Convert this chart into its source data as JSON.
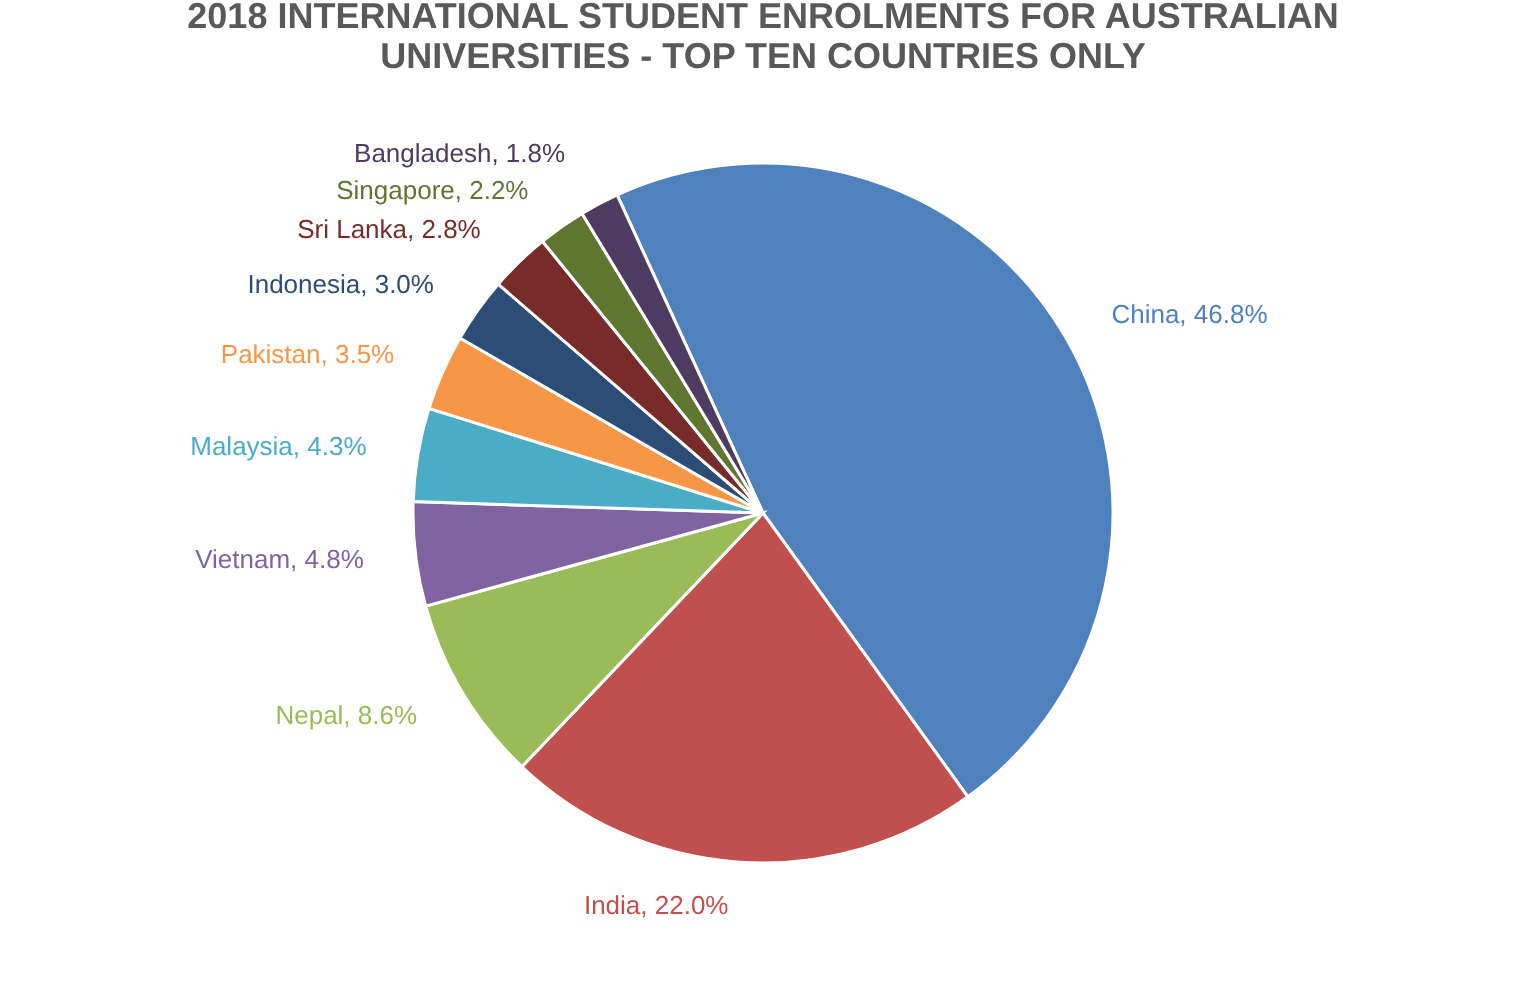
{
  "chart_data": {
    "type": "pie",
    "title": "2018 INTERNATIONAL STUDENT ENROLMENTS FOR AUSTRALIAN UNIVERSITIES - TOP TEN COUNTRIES ONLY",
    "categories": [
      "China",
      "India",
      "Nepal",
      "Vietnam",
      "Malaysia",
      "Pakistan",
      "Indonesia",
      "Sri Lanka",
      "Singapore",
      "Bangladesh"
    ],
    "values": [
      46.8,
      22.0,
      8.6,
      4.8,
      4.3,
      3.5,
      3.0,
      2.8,
      2.2,
      1.8
    ],
    "value_labels": [
      "46.8%",
      "22.0%",
      "8.6%",
      "4.8%",
      "4.3%",
      "3.5%",
      "3.0%",
      "2.8%",
      "2.2%",
      "1.8%"
    ],
    "colors": [
      "#4f81bd",
      "#c0504d",
      "#9bbb59",
      "#8064a2",
      "#4bacc6",
      "#f79646",
      "#2c4d75",
      "#772c2a",
      "#5f7530",
      "#4d3b62"
    ],
    "legend": false
  }
}
